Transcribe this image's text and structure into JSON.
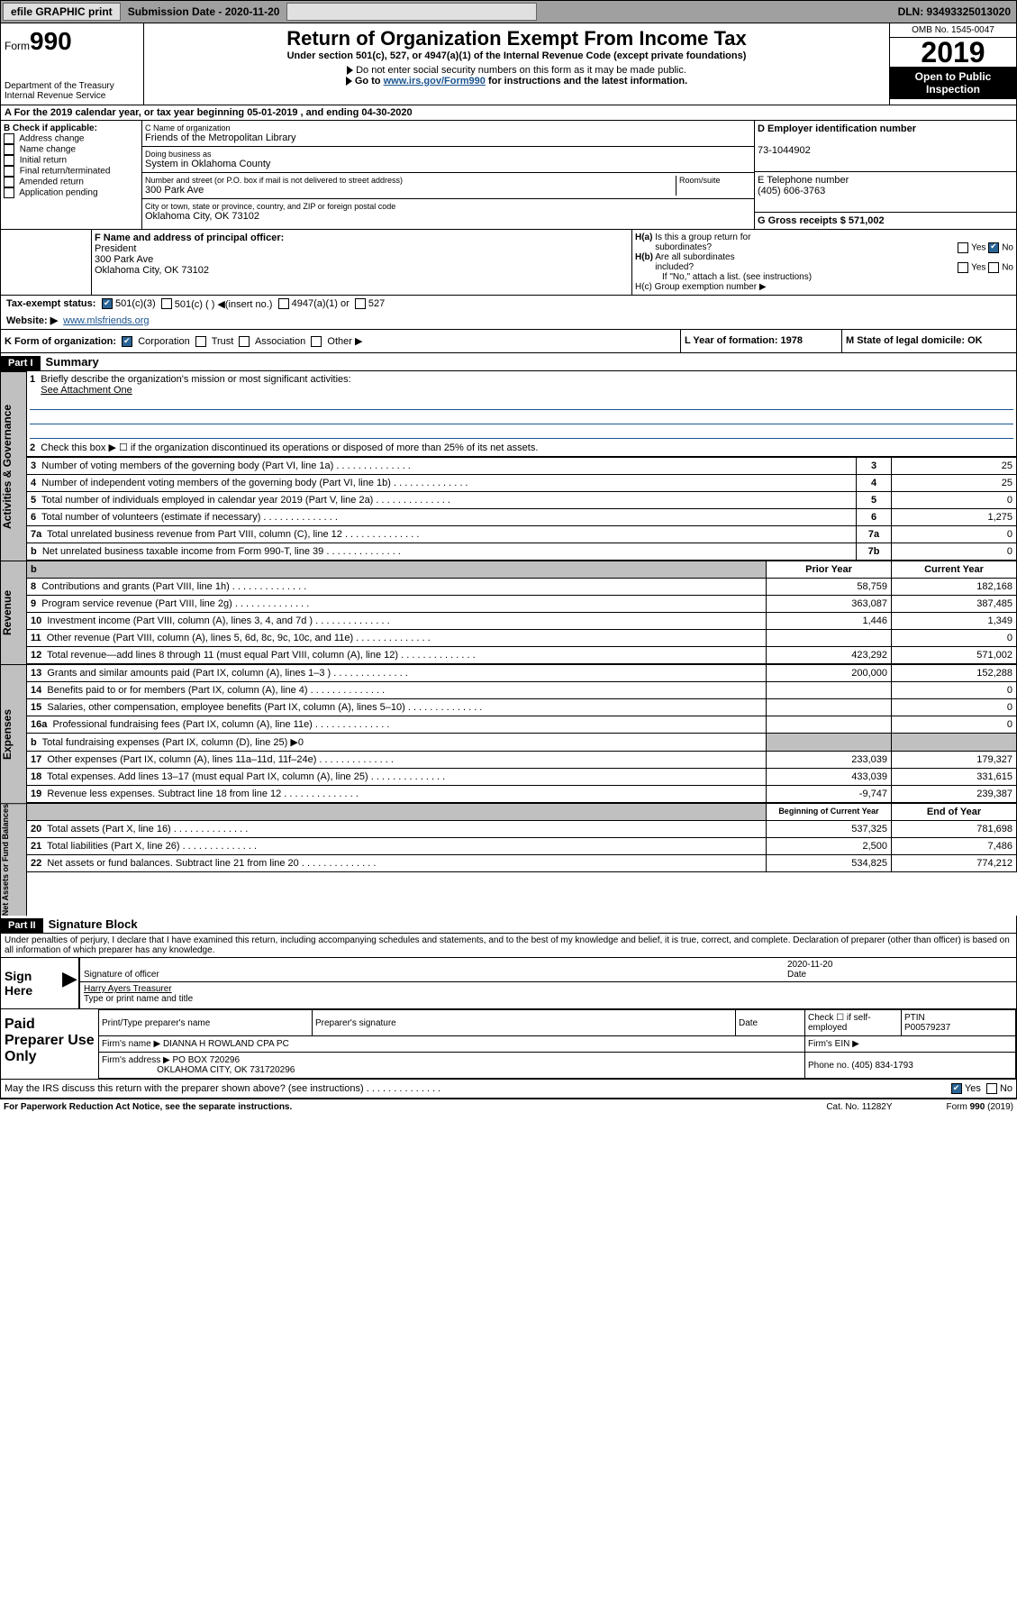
{
  "topbar": {
    "efile": "efile GRAPHIC print",
    "subdate_label": "Submission Date - 2020-11-20",
    "dln": "DLN: 93493325013020"
  },
  "header": {
    "form_label": "Form",
    "form_num": "990",
    "title": "Return of Organization Exempt From Income Tax",
    "sub1": "Under section 501(c), 527, or 4947(a)(1) of the Internal Revenue Code (except private foundations)",
    "sub2": "Do not enter social security numbers on this form as it may be made public.",
    "sub3_pre": "Go to ",
    "sub3_link": "www.irs.gov/Form990",
    "sub3_post": " for instructions and the latest information.",
    "dept": "Department of the Treasury",
    "irs": "Internal Revenue Service",
    "omb": "OMB No. 1545-0047",
    "year": "2019",
    "pub": "Open to Public Inspection"
  },
  "period": {
    "a": "A For the 2019 calendar year, or tax year beginning 05-01-2019   , and ending 04-30-2020"
  },
  "boxB": {
    "hdr": "B Check if applicable:",
    "items": [
      "Address change",
      "Name change",
      "Initial return",
      "Final return/terminated",
      "Amended return",
      "Application pending"
    ]
  },
  "boxC": {
    "name_label": "C Name of organization",
    "name": "Friends of the Metropolitan Library",
    "dba_label": "Doing business as",
    "dba": "System in Oklahoma County",
    "addr_label": "Number and street (or P.O. box if mail is not delivered to street address)",
    "room": "Room/suite",
    "addr": "300 Park Ave",
    "city_label": "City or town, state or province, country, and ZIP or foreign postal code",
    "city": "Oklahoma City, OK  73102"
  },
  "boxD": {
    "label": "D Employer identification number",
    "ein": "73-1044902"
  },
  "boxE": {
    "label": "E Telephone number",
    "phone": "(405) 606-3763"
  },
  "boxG": {
    "label": "G Gross receipts $ 571,002"
  },
  "boxF": {
    "label": "F Name and address of principal officer:",
    "name": "President",
    "addr1": "300 Park Ave",
    "addr2": "Oklahoma City, OK  73102"
  },
  "boxH": {
    "ha": "H(a)  Is this a group return for subordinates?",
    "hb": "H(b)  Are all subordinates included?",
    "hb_note": "If \"No,\" attach a list. (see instructions)",
    "hc": "H(c)  Group exemption number ▶"
  },
  "boxI": {
    "label": "Tax-exempt status:",
    "o1": "501(c)(3)",
    "o2": "501(c) (  ) ◀(insert no.)",
    "o3": "4947(a)(1) or",
    "o4": "527"
  },
  "boxJ": {
    "label": "Website: ▶",
    "url": "www.mlsfriends.org"
  },
  "boxK": {
    "label": "K Form of organization:",
    "o1": "Corporation",
    "o2": "Trust",
    "o3": "Association",
    "o4": "Other ▶"
  },
  "boxL": {
    "label": "L Year of formation: 1978"
  },
  "boxM": {
    "label": "M State of legal domicile: OK"
  },
  "part1": {
    "label": "Part I",
    "title": "Summary"
  },
  "summary": {
    "q1": "Briefly describe the organization's mission or most significant activities:",
    "q1a": "See Attachment One",
    "q2": "Check this box ▶ ☐  if the organization discontinued its operations or disposed of more than 25% of its net assets.",
    "rows_gov": [
      {
        "n": "1",
        "t": "Briefly describe the organization's mission or most significant activities:"
      },
      {
        "n": "3",
        "t": "Number of voting members of the governing body (Part VI, line 1a)",
        "b": "3",
        "v": "25"
      },
      {
        "n": "4",
        "t": "Number of independent voting members of the governing body (Part VI, line 1b)",
        "b": "4",
        "v": "25"
      },
      {
        "n": "5",
        "t": "Total number of individuals employed in calendar year 2019 (Part V, line 2a)",
        "b": "5",
        "v": "0"
      },
      {
        "n": "6",
        "t": "Total number of volunteers (estimate if necessary)",
        "b": "6",
        "v": "1,275"
      },
      {
        "n": "7a",
        "t": "Total unrelated business revenue from Part VIII, column (C), line 12",
        "b": "7a",
        "v": "0"
      },
      {
        "n": "b",
        "t": "Net unrelated business taxable income from Form 990-T, line 39",
        "b": "7b",
        "v": "0"
      }
    ],
    "hdr_prior": "Prior Year",
    "hdr_curr": "Current Year",
    "rev": [
      {
        "n": "8",
        "t": "Contributions and grants (Part VIII, line 1h)",
        "p": "58,759",
        "c": "182,168"
      },
      {
        "n": "9",
        "t": "Program service revenue (Part VIII, line 2g)",
        "p": "363,087",
        "c": "387,485"
      },
      {
        "n": "10",
        "t": "Investment income (Part VIII, column (A), lines 3, 4, and 7d )",
        "p": "1,446",
        "c": "1,349"
      },
      {
        "n": "11",
        "t": "Other revenue (Part VIII, column (A), lines 5, 6d, 8c, 9c, 10c, and 11e)",
        "p": "",
        "c": "0"
      },
      {
        "n": "12",
        "t": "Total revenue—add lines 8 through 11 (must equal Part VIII, column (A), line 12)",
        "p": "423,292",
        "c": "571,002"
      }
    ],
    "exp": [
      {
        "n": "13",
        "t": "Grants and similar amounts paid (Part IX, column (A), lines 1–3 )",
        "p": "200,000",
        "c": "152,288"
      },
      {
        "n": "14",
        "t": "Benefits paid to or for members (Part IX, column (A), line 4)",
        "p": "",
        "c": "0"
      },
      {
        "n": "15",
        "t": "Salaries, other compensation, employee benefits (Part IX, column (A), lines 5–10)",
        "p": "",
        "c": "0"
      },
      {
        "n": "16a",
        "t": "Professional fundraising fees (Part IX, column (A), line 11e)",
        "p": "",
        "c": "0"
      },
      {
        "n": "b",
        "t": "Total fundraising expenses (Part IX, column (D), line 25) ▶0",
        "grey": true
      },
      {
        "n": "17",
        "t": "Other expenses (Part IX, column (A), lines 11a–11d, 11f–24e)",
        "p": "233,039",
        "c": "179,327"
      },
      {
        "n": "18",
        "t": "Total expenses. Add lines 13–17 (must equal Part IX, column (A), line 25)",
        "p": "433,039",
        "c": "331,615"
      },
      {
        "n": "19",
        "t": "Revenue less expenses. Subtract line 18 from line 12",
        "p": "-9,747",
        "c": "239,387"
      }
    ],
    "hdr_boy": "Beginning of Current Year",
    "hdr_eoy": "End of Year",
    "net": [
      {
        "n": "20",
        "t": "Total assets (Part X, line 16)",
        "p": "537,325",
        "c": "781,698"
      },
      {
        "n": "21",
        "t": "Total liabilities (Part X, line 26)",
        "p": "2,500",
        "c": "7,486"
      },
      {
        "n": "22",
        "t": "Net assets or fund balances. Subtract line 21 from line 20",
        "p": "534,825",
        "c": "774,212"
      }
    ]
  },
  "side": {
    "gov": "Activities & Governance",
    "rev": "Revenue",
    "exp": "Expenses",
    "net": "Net Assets or Fund Balances"
  },
  "part2": {
    "label": "Part II",
    "title": "Signature Block",
    "decl": "Under penalties of perjury, I declare that I have examined this return, including accompanying schedules and statements, and to the best of my knowledge and belief, it is true, correct, and complete. Declaration of preparer (other than officer) is based on all information of which preparer has any knowledge."
  },
  "sign": {
    "here": "Sign Here",
    "sig": "Signature of officer",
    "date": "2020-11-20",
    "date_l": "Date",
    "name": "Harry Ayers  Treasurer",
    "name_l": "Type or print name and title"
  },
  "prep": {
    "label": "Paid Preparer Use Only",
    "h1": "Print/Type preparer's name",
    "h2": "Preparer's signature",
    "h3": "Date",
    "h4": "Check ☐ if self-employed",
    "h5": "PTIN",
    "ptin": "P00579237",
    "firm_l": "Firm's name   ▶",
    "firm": "DIANNA H ROWLAND CPA PC",
    "ein_l": "Firm's EIN ▶",
    "addr_l": "Firm's address ▶",
    "addr": "PO BOX 720296",
    "city": "OKLAHOMA CITY, OK  731720296",
    "ph_l": "Phone no. (405) 834-1793"
  },
  "discuss": "May the IRS discuss this return with the preparer shown above? (see instructions)",
  "footer": {
    "pra": "For Paperwork Reduction Act Notice, see the separate instructions.",
    "cat": "Cat. No. 11282Y",
    "form": "Form 990 (2019)"
  }
}
